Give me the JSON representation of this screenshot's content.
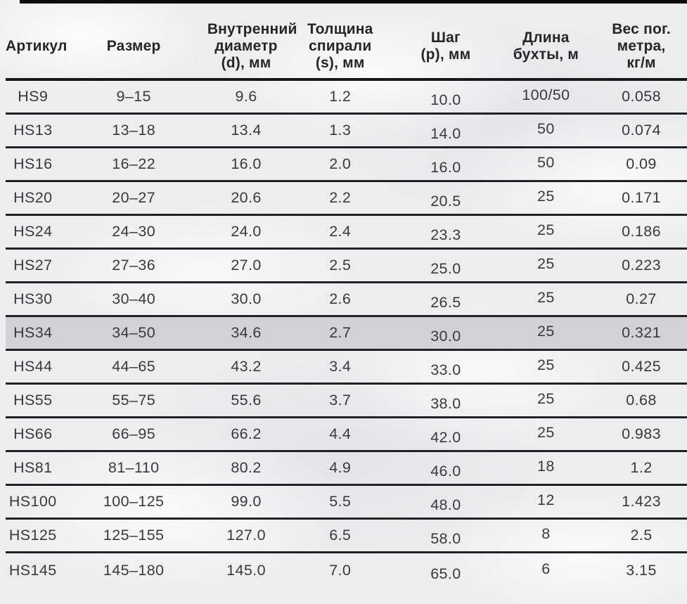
{
  "chart_data": {
    "type": "table",
    "title": "",
    "highlighted_article": "HS34",
    "columns": [
      {
        "key": "article",
        "label": "Артикул",
        "lines": [
          "Артикул"
        ]
      },
      {
        "key": "size",
        "label": "Размер",
        "lines": [
          "Размер"
        ]
      },
      {
        "key": "inner-diameter",
        "label": "Внутренний диаметр (d), мм",
        "lines": [
          "Внутренний",
          "диаметр",
          "(d), мм"
        ]
      },
      {
        "key": "spiral-thickness",
        "label": "Толщина спирали (s), мм",
        "lines": [
          "Толщина",
          "спирали",
          "(s), мм"
        ]
      },
      {
        "key": "pitch",
        "label": "Шаг (p), мм",
        "lines": [
          "Шаг",
          "(p), мм"
        ]
      },
      {
        "key": "coil-length",
        "label": "Длина бухты, м",
        "lines": [
          "Длина",
          "бухты, м"
        ]
      },
      {
        "key": "weight",
        "label": "Вес пог. метра, кг/м",
        "lines": [
          "Вес пог.",
          "метра,",
          "кг/м"
        ]
      }
    ],
    "rows": [
      [
        "HS9",
        "9–15",
        "9.6",
        "1.2",
        "10.0",
        "100/50",
        "0.058"
      ],
      [
        "HS13",
        "13–18",
        "13.4",
        "1.3",
        "14.0",
        "50",
        "0.074"
      ],
      [
        "HS16",
        "16–22",
        "16.0",
        "2.0",
        "16.0",
        "50",
        "0.09"
      ],
      [
        "HS20",
        "20–27",
        "20.6",
        "2.2",
        "20.5",
        "25",
        "0.171"
      ],
      [
        "HS24",
        "24–30",
        "24.0",
        "2.4",
        "23.3",
        "25",
        "0.186"
      ],
      [
        "HS27",
        "27–36",
        "27.0",
        "2.5",
        "25.0",
        "25",
        "0.223"
      ],
      [
        "HS30",
        "30–40",
        "30.0",
        "2.6",
        "26.5",
        "25",
        "0.27"
      ],
      [
        "HS34",
        "34–50",
        "34.6",
        "2.7",
        "30.0",
        "25",
        "0.321"
      ],
      [
        "HS44",
        "44–65",
        "43.2",
        "3.4",
        "33.0",
        "25",
        "0.425"
      ],
      [
        "HS55",
        "55–75",
        "55.6",
        "3.7",
        "38.0",
        "25",
        "0.68"
      ],
      [
        "HS66",
        "66–95",
        "66.2",
        "4.4",
        "42.0",
        "25",
        "0.983"
      ],
      [
        "HS81",
        "81–110",
        "80.2",
        "4.9",
        "46.0",
        "18",
        "1.2"
      ],
      [
        "HS100",
        "100–125",
        "99.0",
        "5.5",
        "48.0",
        "12",
        "1.423"
      ],
      [
        "HS125",
        "125–155",
        "127.0",
        "6.5",
        "58.0",
        "8",
        "2.5"
      ],
      [
        "HS145",
        "145–180",
        "145.0",
        "7.0",
        "65.0",
        "6",
        "3.15"
      ]
    ],
    "colors": {
      "highlight_row_background": "#d2d2d4",
      "rule": "#1a1b1d",
      "text": "#3a3a3c",
      "page_background": "#eceded"
    }
  }
}
